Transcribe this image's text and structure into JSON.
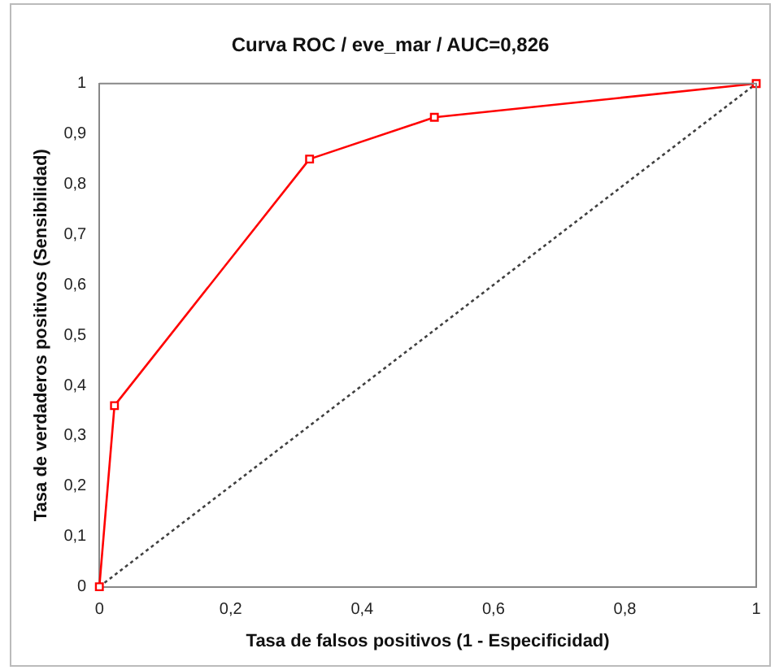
{
  "chart_data": {
    "type": "line",
    "title": "Curva ROC / eve_mar / AUC=0,826",
    "xlabel": "Tasa de falsos positivos (1 - Especificidad)",
    "ylabel": "Tasa de verdaderos positivos (Sensibilidad)",
    "xlim": [
      0,
      1
    ],
    "xticks": [
      0,
      {
        "value": 0.2,
        "label": "0,2"
      },
      {
        "value": 0.4,
        "label": "0,4"
      },
      {
        "value": 0.6,
        "label": "0,6"
      },
      {
        "value": 0.8,
        "label": "0,8"
      },
      1
    ],
    "ylim": [
      0,
      1
    ],
    "yticks": [
      0,
      {
        "value": 0.1,
        "label": "0,1"
      },
      {
        "value": 0.2,
        "label": "0,2"
      },
      {
        "value": 0.3,
        "label": "0,3"
      },
      {
        "value": 0.4,
        "label": "0,4"
      },
      {
        "value": 0.5,
        "label": "0,5"
      },
      {
        "value": 0.6,
        "label": "0,6"
      },
      {
        "value": 0.7,
        "label": "0,7"
      },
      {
        "value": 0.8,
        "label": "0,8"
      },
      {
        "value": 0.9,
        "label": "0,9"
      },
      1
    ],
    "grid": false,
    "legend": false,
    "series": [
      {
        "color": "#ff0000",
        "x": [
          0,
          0.023,
          0.32,
          0.51,
          1
        ],
        "values": [
          0,
          0.36,
          0.85,
          0.933,
          1
        ],
        "marker": "square",
        "line_style": "solid"
      },
      {
        "color": "#404040",
        "x": [
          0,
          1
        ],
        "values": [
          0,
          1
        ],
        "marker": "none",
        "line_style": "dotted"
      }
    ]
  }
}
